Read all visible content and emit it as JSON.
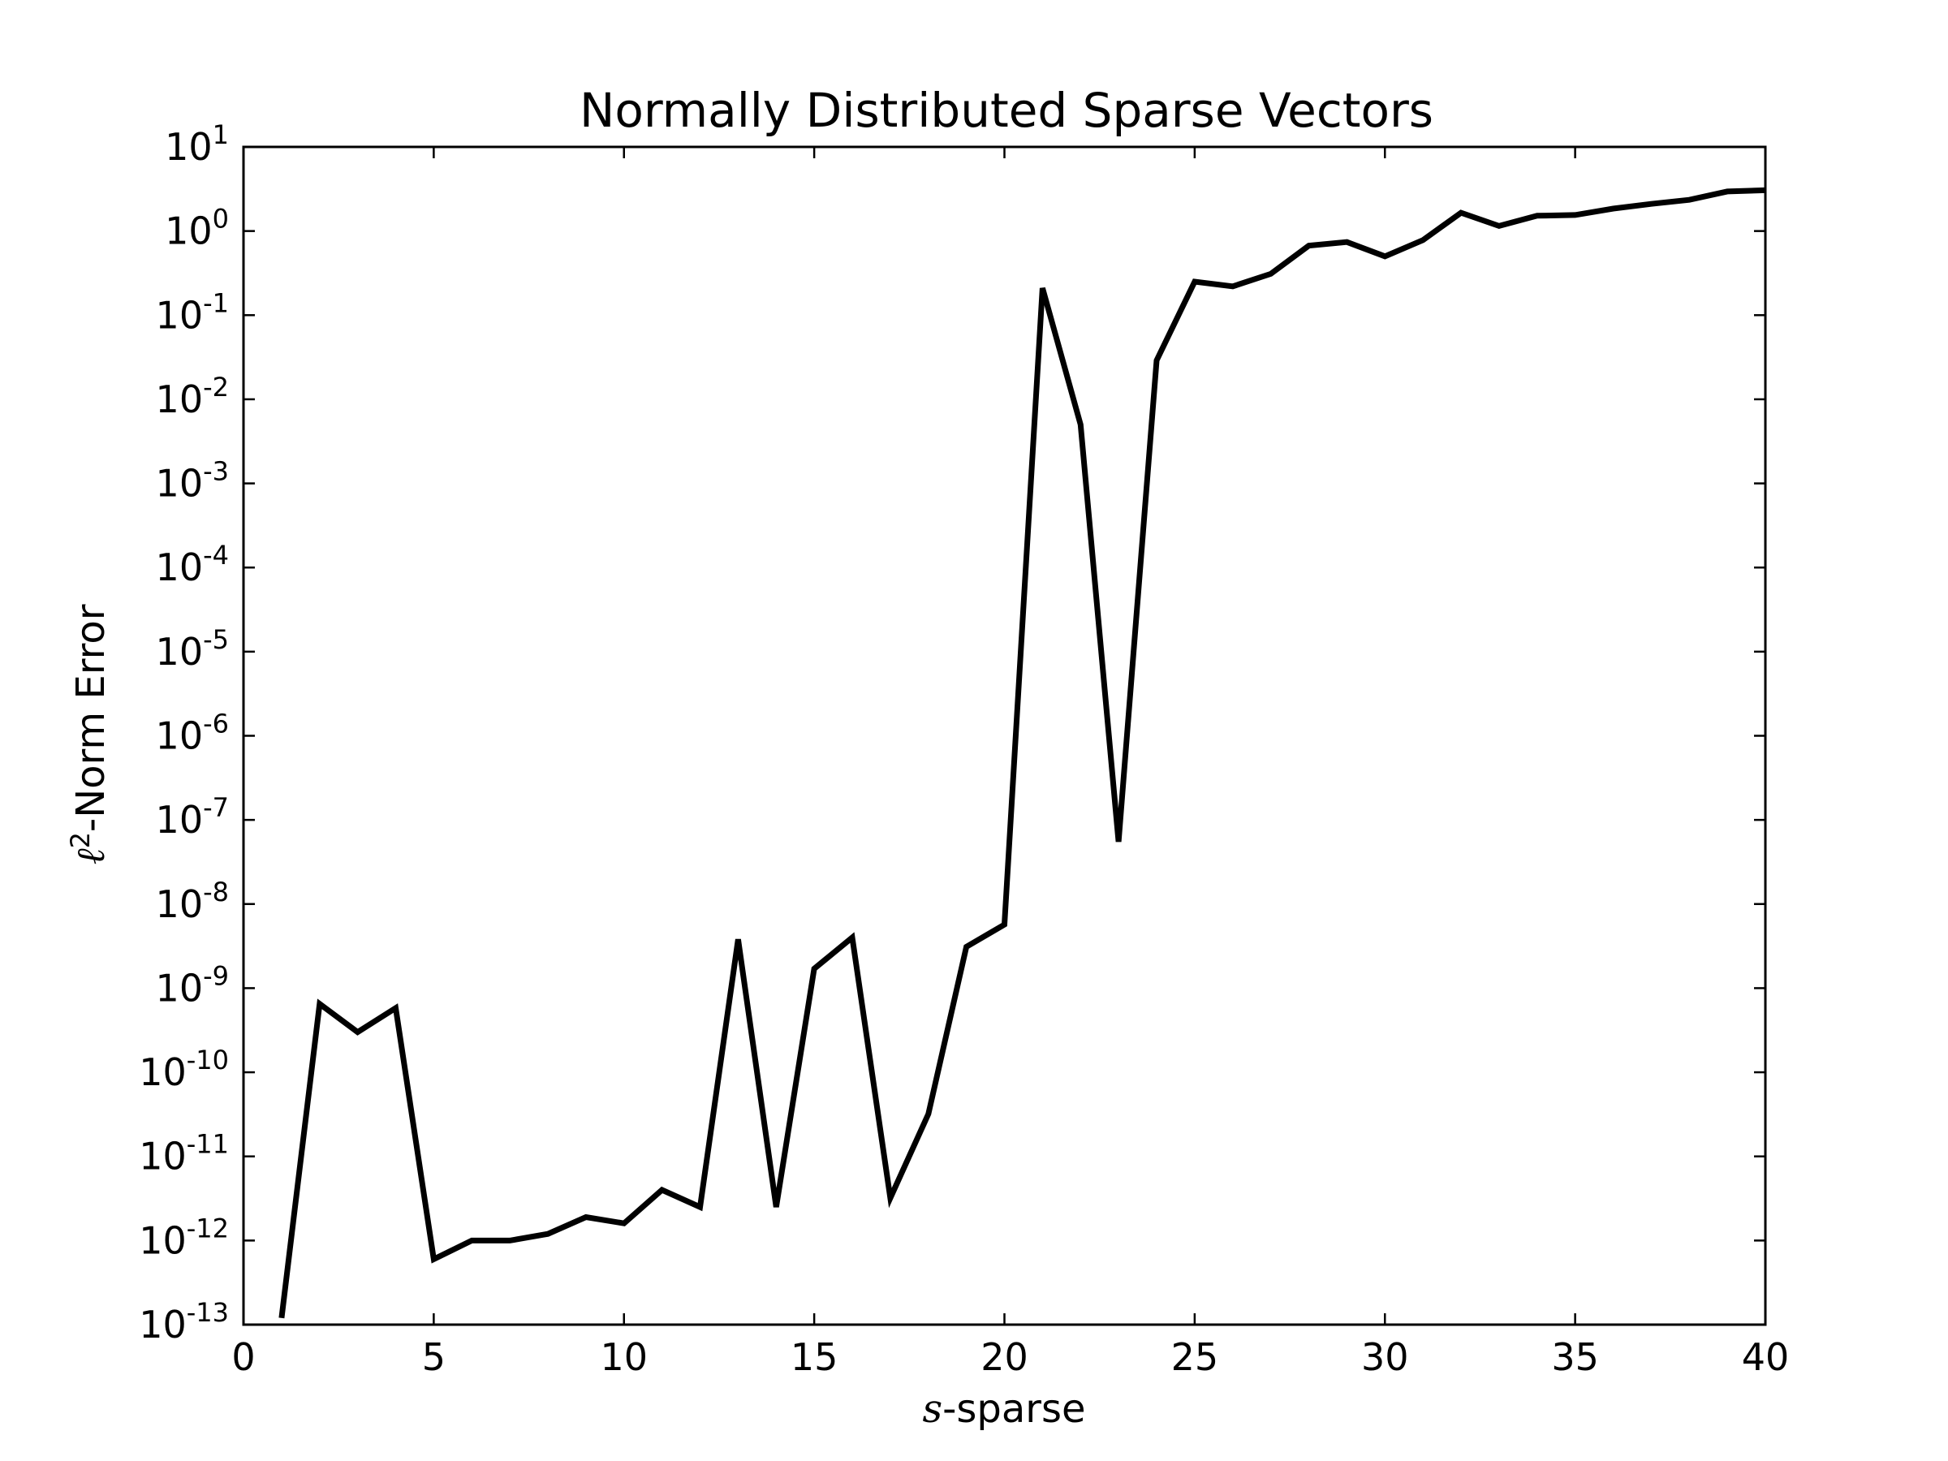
{
  "chart_data": {
    "type": "line",
    "title": "Normally Distributed Sparse Vectors",
    "xlabel_math": "s",
    "xlabel_rest": "-sparse",
    "ylabel_math": "ℓ",
    "ylabel_sup": "2",
    "ylabel_rest": "-Norm Error",
    "xlim": [
      0,
      40
    ],
    "ylim": [
      1e-13,
      10
    ],
    "yscale": "log",
    "grid": false,
    "legend": "none",
    "line_color": "#000000",
    "x_ticks": [
      {
        "value": 0,
        "label": "0"
      },
      {
        "value": 5,
        "label": "5"
      },
      {
        "value": 10,
        "label": "10"
      },
      {
        "value": 15,
        "label": "15"
      },
      {
        "value": 20,
        "label": "20"
      },
      {
        "value": 25,
        "label": "25"
      },
      {
        "value": 30,
        "label": "30"
      },
      {
        "value": 35,
        "label": "35"
      },
      {
        "value": 40,
        "label": "40"
      }
    ],
    "y_ticks": [
      {
        "exp": 1,
        "base": "10",
        "sup": "1"
      },
      {
        "exp": 0,
        "base": "10",
        "sup": "0"
      },
      {
        "exp": -1,
        "base": "10",
        "sup": "-1"
      },
      {
        "exp": -2,
        "base": "10",
        "sup": "-2"
      },
      {
        "exp": -3,
        "base": "10",
        "sup": "-3"
      },
      {
        "exp": -4,
        "base": "10",
        "sup": "-4"
      },
      {
        "exp": -5,
        "base": "10",
        "sup": "-5"
      },
      {
        "exp": -6,
        "base": "10",
        "sup": "-6"
      },
      {
        "exp": -7,
        "base": "10",
        "sup": "-7"
      },
      {
        "exp": -8,
        "base": "10",
        "sup": "-8"
      },
      {
        "exp": -9,
        "base": "10",
        "sup": "-9"
      },
      {
        "exp": -10,
        "base": "10",
        "sup": "-10"
      },
      {
        "exp": -11,
        "base": "10",
        "sup": "-11"
      },
      {
        "exp": -12,
        "base": "10",
        "sup": "-12"
      },
      {
        "exp": -13,
        "base": "10",
        "sup": "-13"
      }
    ],
    "series": [
      {
        "x": [
          1,
          2,
          3,
          4,
          5,
          6,
          7,
          8,
          9,
          10,
          11,
          12,
          13,
          14,
          15,
          16,
          17,
          18,
          19,
          20,
          21,
          22,
          23,
          24,
          25,
          26,
          27,
          28,
          29,
          30,
          31,
          32,
          33,
          34,
          35,
          36,
          37,
          38,
          39,
          40
        ],
        "y": [
          1.2e-13,
          6.5e-10,
          3e-10,
          5.8e-10,
          6e-13,
          1e-12,
          1e-12,
          1.2e-12,
          1.9e-12,
          1.6e-12,
          4e-12,
          2.5e-12,
          3.8e-09,
          2.5e-12,
          1.7e-09,
          4e-09,
          3.2e-12,
          3.2e-11,
          3.1e-09,
          5.7e-09,
          0.21,
          0.005,
          5.5e-08,
          0.029,
          0.25,
          0.22,
          0.31,
          0.67,
          0.74,
          0.5,
          0.78,
          1.65,
          1.15,
          1.52,
          1.55,
          1.85,
          2.1,
          2.35,
          2.95,
          3.05
        ]
      }
    ]
  }
}
